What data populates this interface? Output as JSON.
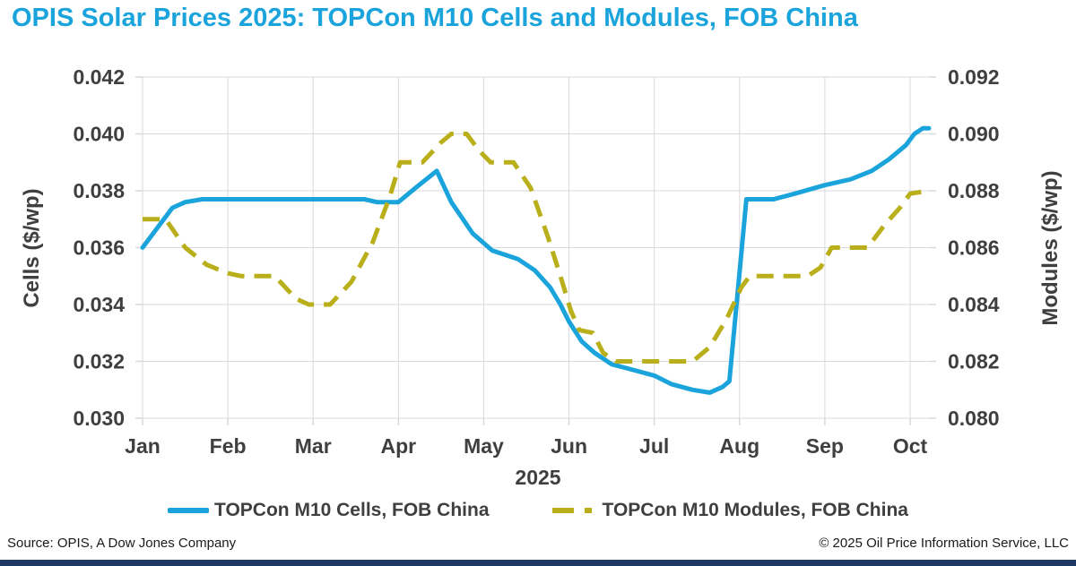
{
  "title": "OPIS Solar Prices 2025: TOPCon M10 Cells and Modules, FOB China",
  "colors": {
    "title": "#1BA4DC",
    "cells_line": "#1BA4DC",
    "modules_line": "#B9AF1A",
    "grid": "#D9D9D9",
    "axis_text": "#3F3F3F",
    "footer_text": "#1A1A1A",
    "bottom_bar": "#1F3864"
  },
  "chart_data": {
    "type": "line",
    "title": "OPIS Solar Prices 2025: TOPCon M10 Cells and Modules, FOB China",
    "grid": "on",
    "legend_position": "bottom",
    "x_axis": {
      "label": "2025",
      "tick_labels": [
        "Jan",
        "Feb",
        "Mar",
        "Apr",
        "May",
        "Jun",
        "Jul",
        "Aug",
        "Sep",
        "Oct"
      ]
    },
    "y_left": {
      "label": "Cells ($/wp)",
      "min": 0.03,
      "max": 0.042,
      "tick_labels": [
        "0.042",
        "0.040",
        "0.038",
        "0.036",
        "0.034",
        "0.032",
        "0.030"
      ]
    },
    "y_right": {
      "label": "Modules ($/wp)",
      "min": 0.08,
      "max": 0.092,
      "tick_labels": [
        "0.092",
        "0.090",
        "0.088",
        "0.086",
        "0.084",
        "0.082",
        "0.080"
      ]
    },
    "series": [
      {
        "name": "TOPCon M10 Cells, FOB China",
        "axis": "left",
        "style": "solid",
        "color": "#1BA4DC",
        "points": [
          [
            0.0,
            0.036
          ],
          [
            0.2,
            0.0368
          ],
          [
            0.35,
            0.0374
          ],
          [
            0.5,
            0.0376
          ],
          [
            0.7,
            0.0377
          ],
          [
            1.0,
            0.0377
          ],
          [
            1.5,
            0.0377
          ],
          [
            2.0,
            0.0377
          ],
          [
            2.6,
            0.0377
          ],
          [
            2.75,
            0.0376
          ],
          [
            3.0,
            0.0376
          ],
          [
            3.2,
            0.0381
          ],
          [
            3.45,
            0.0387
          ],
          [
            3.62,
            0.0376
          ],
          [
            3.87,
            0.0365
          ],
          [
            4.1,
            0.0359
          ],
          [
            4.4,
            0.0356
          ],
          [
            4.6,
            0.0352
          ],
          [
            4.78,
            0.0346
          ],
          [
            4.9,
            0.034
          ],
          [
            5.0,
            0.0334
          ],
          [
            5.15,
            0.0327
          ],
          [
            5.3,
            0.0323
          ],
          [
            5.5,
            0.0319
          ],
          [
            5.75,
            0.0317
          ],
          [
            6.0,
            0.0315
          ],
          [
            6.2,
            0.0312
          ],
          [
            6.45,
            0.031
          ],
          [
            6.65,
            0.0309
          ],
          [
            6.8,
            0.0311
          ],
          [
            6.88,
            0.0313
          ],
          [
            7.08,
            0.0377
          ],
          [
            7.4,
            0.0377
          ],
          [
            7.65,
            0.0379
          ],
          [
            8.0,
            0.0382
          ],
          [
            8.3,
            0.0384
          ],
          [
            8.55,
            0.0387
          ],
          [
            8.75,
            0.0391
          ],
          [
            8.95,
            0.0396
          ],
          [
            9.05,
            0.04
          ],
          [
            9.15,
            0.0402
          ],
          [
            9.22,
            0.0402
          ]
        ]
      },
      {
        "name": "TOPCon M10 Modules, FOB China",
        "axis": "right",
        "style": "dashed",
        "color": "#B9AF1A",
        "points": [
          [
            0.0,
            0.087
          ],
          [
            0.27,
            0.087
          ],
          [
            0.5,
            0.086
          ],
          [
            0.75,
            0.0854
          ],
          [
            1.0,
            0.0851
          ],
          [
            1.15,
            0.085
          ],
          [
            1.55,
            0.085
          ],
          [
            1.8,
            0.0842
          ],
          [
            1.95,
            0.084
          ],
          [
            2.2,
            0.084
          ],
          [
            2.45,
            0.0848
          ],
          [
            2.7,
            0.0862
          ],
          [
            2.9,
            0.0878
          ],
          [
            3.02,
            0.089
          ],
          [
            3.28,
            0.089
          ],
          [
            3.5,
            0.0897
          ],
          [
            3.62,
            0.09
          ],
          [
            3.8,
            0.09
          ],
          [
            3.95,
            0.0894
          ],
          [
            4.08,
            0.089
          ],
          [
            4.35,
            0.089
          ],
          [
            4.55,
            0.0881
          ],
          [
            4.75,
            0.0864
          ],
          [
            4.9,
            0.085
          ],
          [
            5.02,
            0.0838
          ],
          [
            5.12,
            0.0831
          ],
          [
            5.28,
            0.083
          ],
          [
            5.4,
            0.0823
          ],
          [
            5.55,
            0.082
          ],
          [
            6.45,
            0.082
          ],
          [
            6.65,
            0.0825
          ],
          [
            6.85,
            0.0835
          ],
          [
            7.02,
            0.0846
          ],
          [
            7.12,
            0.085
          ],
          [
            7.8,
            0.085
          ],
          [
            7.95,
            0.0853
          ],
          [
            8.08,
            0.086
          ],
          [
            8.5,
            0.086
          ],
          [
            8.7,
            0.0868
          ],
          [
            8.88,
            0.0874
          ],
          [
            9.0,
            0.0879
          ],
          [
            9.22,
            0.088
          ]
        ]
      }
    ]
  },
  "legend": {
    "cells_label": "TOPCon M10 Cells, FOB China",
    "modules_label": "TOPCon M10 Modules, FOB China"
  },
  "footer": {
    "source": "Source: OPIS, A Dow Jones Company",
    "copyright": "© 2025 Oil Price Information Service, LLC"
  }
}
